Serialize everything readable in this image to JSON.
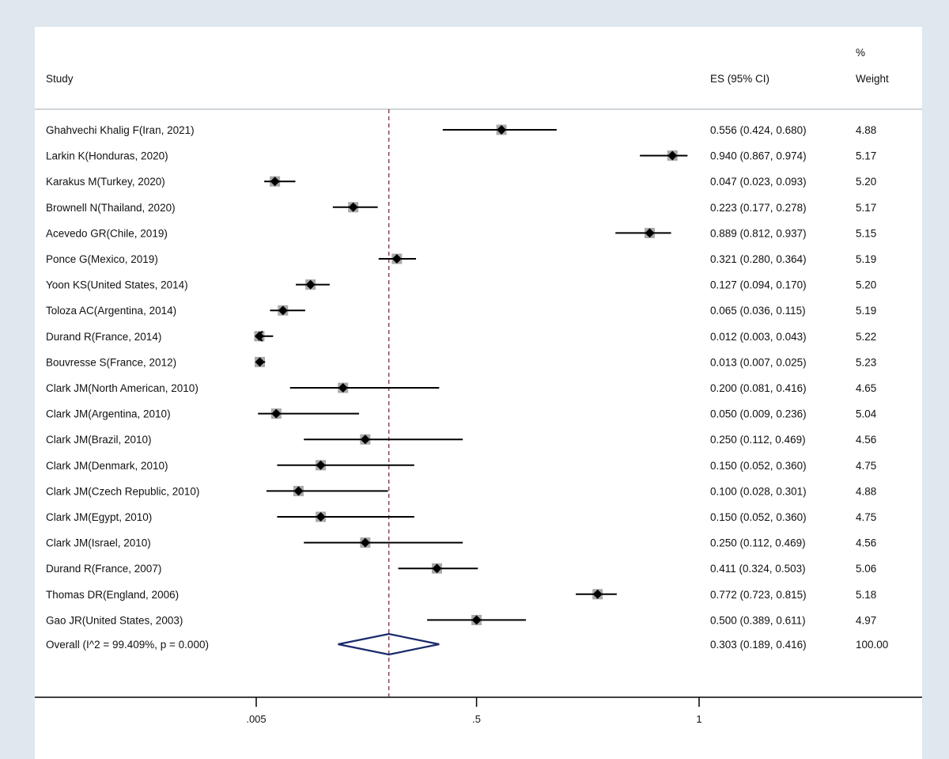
{
  "chart_data": {
    "type": "forest",
    "columns": {
      "study": "Study",
      "es": "ES (95% CI)",
      "weight_line1": "%",
      "weight_line2": "Weight"
    },
    "x_ticks": [
      {
        "value": 0.005,
        "label": ".005"
      },
      {
        "value": 0.5,
        "label": ".5"
      },
      {
        "value": 1,
        "label": "1"
      }
    ],
    "xlim": [
      0,
      1
    ],
    "reference_line": 0.303,
    "studies": [
      {
        "label": "Ghahvechi Khalig F(Iran, 2021)",
        "es": 0.556,
        "lo": 0.424,
        "hi": 0.68,
        "es_text": "0.556 (0.424, 0.680)",
        "weight": "4.88"
      },
      {
        "label": "Larkin K(Honduras, 2020)",
        "es": 0.94,
        "lo": 0.867,
        "hi": 0.974,
        "es_text": "0.940 (0.867, 0.974)",
        "weight": "5.17"
      },
      {
        "label": "Karakus M(Turkey, 2020)",
        "es": 0.047,
        "lo": 0.023,
        "hi": 0.093,
        "es_text": "0.047 (0.023, 0.093)",
        "weight": "5.20"
      },
      {
        "label": "Brownell N(Thailand, 2020)",
        "es": 0.223,
        "lo": 0.177,
        "hi": 0.278,
        "es_text": "0.223 (0.177, 0.278)",
        "weight": "5.17"
      },
      {
        "label": "Acevedo GR(Chile, 2019)",
        "es": 0.889,
        "lo": 0.812,
        "hi": 0.937,
        "es_text": "0.889 (0.812, 0.937)",
        "weight": "5.15"
      },
      {
        "label": "Ponce G(Mexico, 2019)",
        "es": 0.321,
        "lo": 0.28,
        "hi": 0.364,
        "es_text": "0.321 (0.280, 0.364)",
        "weight": "5.19"
      },
      {
        "label": "Yoon KS(United States, 2014)",
        "es": 0.127,
        "lo": 0.094,
        "hi": 0.17,
        "es_text": "0.127 (0.094, 0.170)",
        "weight": "5.20"
      },
      {
        "label": "Toloza AC(Argentina, 2014)",
        "es": 0.065,
        "lo": 0.036,
        "hi": 0.115,
        "es_text": "0.065 (0.036, 0.115)",
        "weight": "5.19"
      },
      {
        "label": "Durand R(France, 2014)",
        "es": 0.012,
        "lo": 0.003,
        "hi": 0.043,
        "es_text": "0.012 (0.003, 0.043)",
        "weight": "5.22",
        "arrow_left": true
      },
      {
        "label": "Bouvresse S(France, 2012)",
        "es": 0.013,
        "lo": 0.007,
        "hi": 0.025,
        "es_text": "0.013 (0.007, 0.025)",
        "weight": "5.23"
      },
      {
        "label": "Clark JM(North American, 2010)",
        "es": 0.2,
        "lo": 0.081,
        "hi": 0.416,
        "es_text": "0.200 (0.081, 0.416)",
        "weight": "4.65"
      },
      {
        "label": "Clark JM(Argentina, 2010)",
        "es": 0.05,
        "lo": 0.009,
        "hi": 0.236,
        "es_text": "0.050 (0.009, 0.236)",
        "weight": "5.04"
      },
      {
        "label": "Clark JM(Brazil, 2010)",
        "es": 0.25,
        "lo": 0.112,
        "hi": 0.469,
        "es_text": "0.250 (0.112, 0.469)",
        "weight": "4.56"
      },
      {
        "label": "Clark JM(Denmark, 2010)",
        "es": 0.15,
        "lo": 0.052,
        "hi": 0.36,
        "es_text": "0.150 (0.052, 0.360)",
        "weight": "4.75"
      },
      {
        "label": "Clark JM(Czech Republic, 2010)",
        "es": 0.1,
        "lo": 0.028,
        "hi": 0.301,
        "es_text": "0.100 (0.028, 0.301)",
        "weight": "4.88"
      },
      {
        "label": "Clark JM(Egypt, 2010)",
        "es": 0.15,
        "lo": 0.052,
        "hi": 0.36,
        "es_text": "0.150 (0.052, 0.360)",
        "weight": "4.75"
      },
      {
        "label": "Clark JM(Israel, 2010)",
        "es": 0.25,
        "lo": 0.112,
        "hi": 0.469,
        "es_text": "0.250 (0.112, 0.469)",
        "weight": "4.56"
      },
      {
        "label": "Durand R(France, 2007)",
        "es": 0.411,
        "lo": 0.324,
        "hi": 0.503,
        "es_text": "0.411 (0.324, 0.503)",
        "weight": "5.06"
      },
      {
        "label": "Thomas DR(England, 2006)",
        "es": 0.772,
        "lo": 0.723,
        "hi": 0.815,
        "es_text": "0.772 (0.723, 0.815)",
        "weight": "5.18"
      },
      {
        "label": "Gao JR(United States, 2003)",
        "es": 0.5,
        "lo": 0.389,
        "hi": 0.611,
        "es_text": "0.500 (0.389, 0.611)",
        "weight": "4.97"
      }
    ],
    "overall": {
      "label": "Overall  (I^2 = 99.409%, p = 0.000)",
      "es": 0.303,
      "lo": 0.189,
      "hi": 0.416,
      "es_text": "0.303 (0.189, 0.416)",
      "weight": "100.00"
    },
    "colors": {
      "background": "#dfe8ef",
      "panel": "#ffffff",
      "ci_line": "#000000",
      "weight_box": "#a9a9a9",
      "diamond": "#1a2a6c",
      "reference_line": "#8b2a3a"
    }
  }
}
